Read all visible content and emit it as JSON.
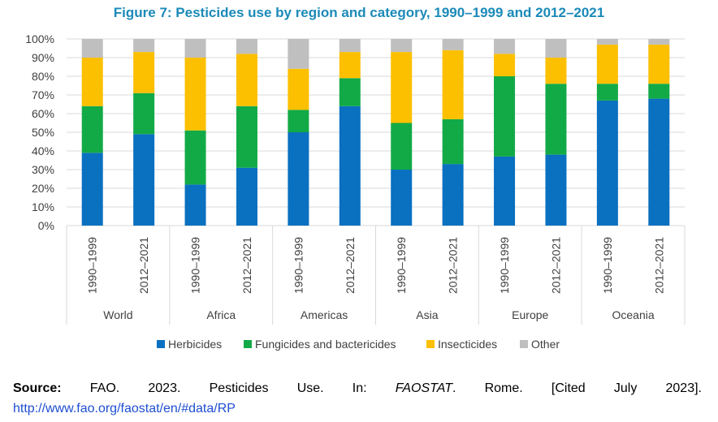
{
  "title": "Figure 7: Pesticides use by region and category, 1990–1999 and 2012–2021",
  "chart_data": {
    "type": "bar",
    "stacked": true,
    "percent": true,
    "ylim": [
      0,
      100
    ],
    "y_ticks": [
      "0%",
      "10%",
      "20%",
      "30%",
      "40%",
      "50%",
      "60%",
      "70%",
      "80%",
      "90%",
      "100%"
    ],
    "grid": true,
    "legend_position": "bottom",
    "groups": [
      "World",
      "Africa",
      "Americas",
      "Asia",
      "Europe",
      "Oceania"
    ],
    "periods": [
      "1990–1999",
      "2012–2021"
    ],
    "categories": [
      "World|1990–1999",
      "World|2012–2021",
      "Africa|1990–1999",
      "Africa|2012–2021",
      "Americas|1990–1999",
      "Americas|2012–2021",
      "Asia|1990–1999",
      "Asia|2012–2021",
      "Europe|1990–1999",
      "Europe|2012–2021",
      "Oceania|1990–1999",
      "Oceania|2012–2021"
    ],
    "series": [
      {
        "name": "Herbicides",
        "color": "#0a70c0",
        "values": [
          39,
          49,
          22,
          31,
          50,
          64,
          30,
          33,
          37,
          38,
          67,
          68
        ]
      },
      {
        "name": "Fungicides and bactericides",
        "color": "#12aa47",
        "values": [
          25,
          22,
          29,
          33,
          12,
          15,
          25,
          24,
          43,
          38,
          9,
          8
        ]
      },
      {
        "name": "Insecticides",
        "color": "#fcc000",
        "values": [
          26,
          22,
          39,
          28,
          22,
          14,
          38,
          37,
          12,
          14,
          21,
          21
        ]
      },
      {
        "name": "Other",
        "color": "#bfbfbf",
        "values": [
          10,
          7,
          10,
          8,
          16,
          7,
          7,
          6,
          8,
          10,
          3,
          3
        ]
      }
    ]
  },
  "source": {
    "label": "Source:",
    "text_before": " FAO. 2023. Pesticides Use. In: ",
    "italic": "FAOSTAT",
    "text_after": ". Rome. [Cited July 2023].",
    "url": "http://www.fao.org/faostat/en/#data/RP"
  },
  "colors": {
    "title": "#1b8ab8",
    "grid": "#d9d9d9",
    "axis_text": "#404040"
  }
}
